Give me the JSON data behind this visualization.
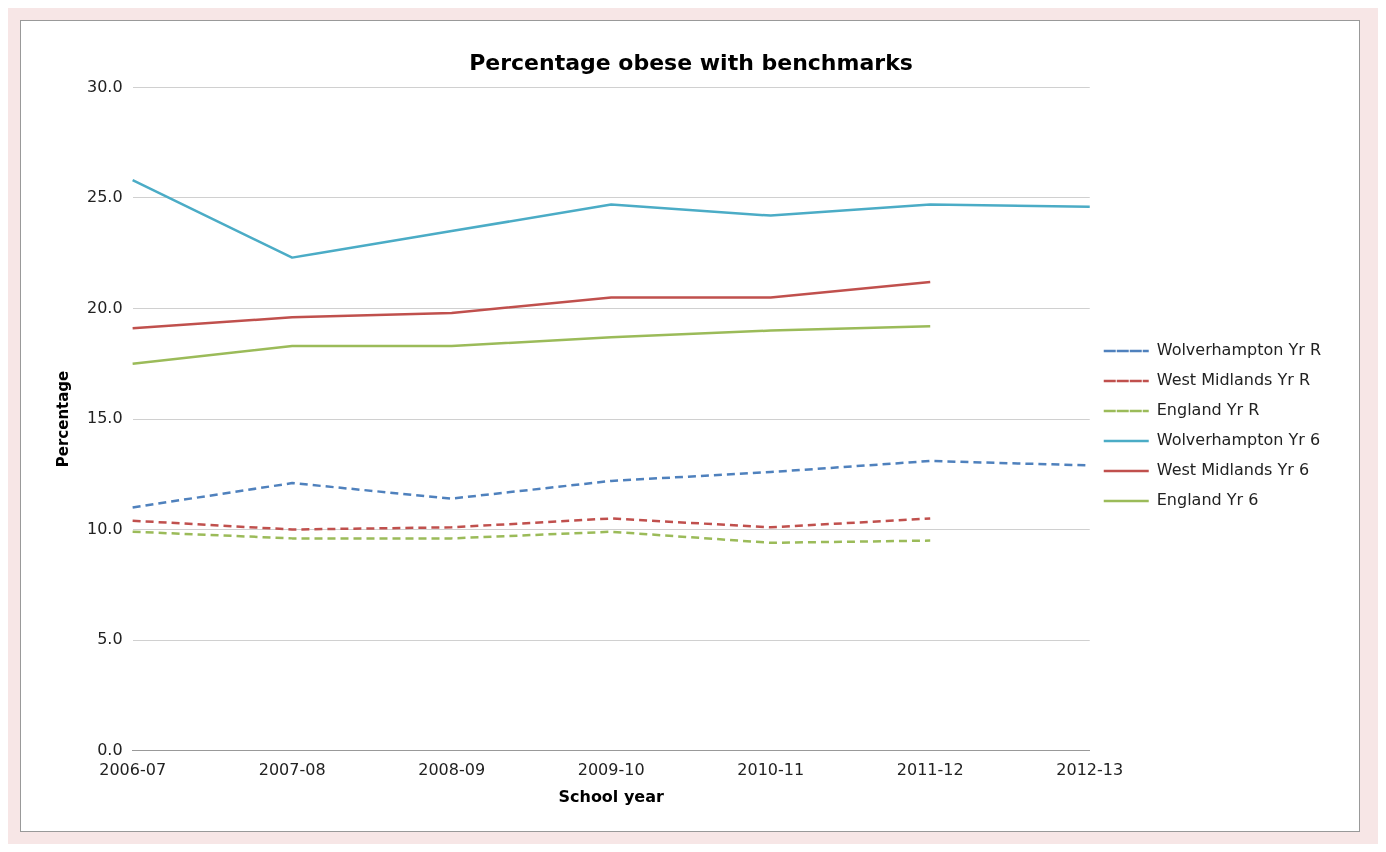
{
  "chart_data": {
    "type": "line",
    "title": "Percentage obese with benchmarks",
    "xlabel": "School year",
    "ylabel": "Percentage",
    "categories": [
      "2006-07",
      "2007-08",
      "2008-09",
      "2009-10",
      "2010-11",
      "2011-12",
      "2012-13"
    ],
    "ylim": [
      0,
      30
    ],
    "yticks": [
      {
        "value": 0,
        "label": "0.0"
      },
      {
        "value": 5,
        "label": "5.0"
      },
      {
        "value": 10,
        "label": "10.0"
      },
      {
        "value": 15,
        "label": "15.0"
      },
      {
        "value": 20,
        "label": "20.0"
      },
      {
        "value": 25,
        "label": "25.0"
      },
      {
        "value": 30,
        "label": "30.0"
      }
    ],
    "grid": "y",
    "legend": "right",
    "marker": "none",
    "series": [
      {
        "name": "Wolverhampton Yr R",
        "color": "#4f81bd",
        "line_style": "dashed",
        "values": [
          11.0,
          12.1,
          11.4,
          12.2,
          12.6,
          13.1,
          12.9
        ]
      },
      {
        "name": "West Midlands Yr R",
        "color": "#c0504d",
        "line_style": "dashed",
        "values": [
          10.4,
          10.0,
          10.1,
          10.5,
          10.1,
          10.5,
          null
        ]
      },
      {
        "name": "England Yr R",
        "color": "#9bbb59",
        "line_style": "dashed",
        "values": [
          9.9,
          9.6,
          9.6,
          9.9,
          9.4,
          9.5,
          null
        ]
      },
      {
        "name": "Wolverhampton Yr 6",
        "color": "#4bacc6",
        "line_style": "solid",
        "values": [
          25.8,
          22.3,
          23.5,
          24.7,
          24.2,
          24.7,
          24.6
        ]
      },
      {
        "name": "West Midlands Yr 6",
        "color": "#c0504d",
        "line_style": "solid",
        "values": [
          19.1,
          19.6,
          19.8,
          20.5,
          20.5,
          21.2,
          null
        ]
      },
      {
        "name": "England Yr 6",
        "color": "#9bbb59",
        "line_style": "solid",
        "values": [
          17.5,
          18.3,
          18.3,
          18.7,
          19.0,
          19.2,
          null
        ]
      }
    ]
  }
}
